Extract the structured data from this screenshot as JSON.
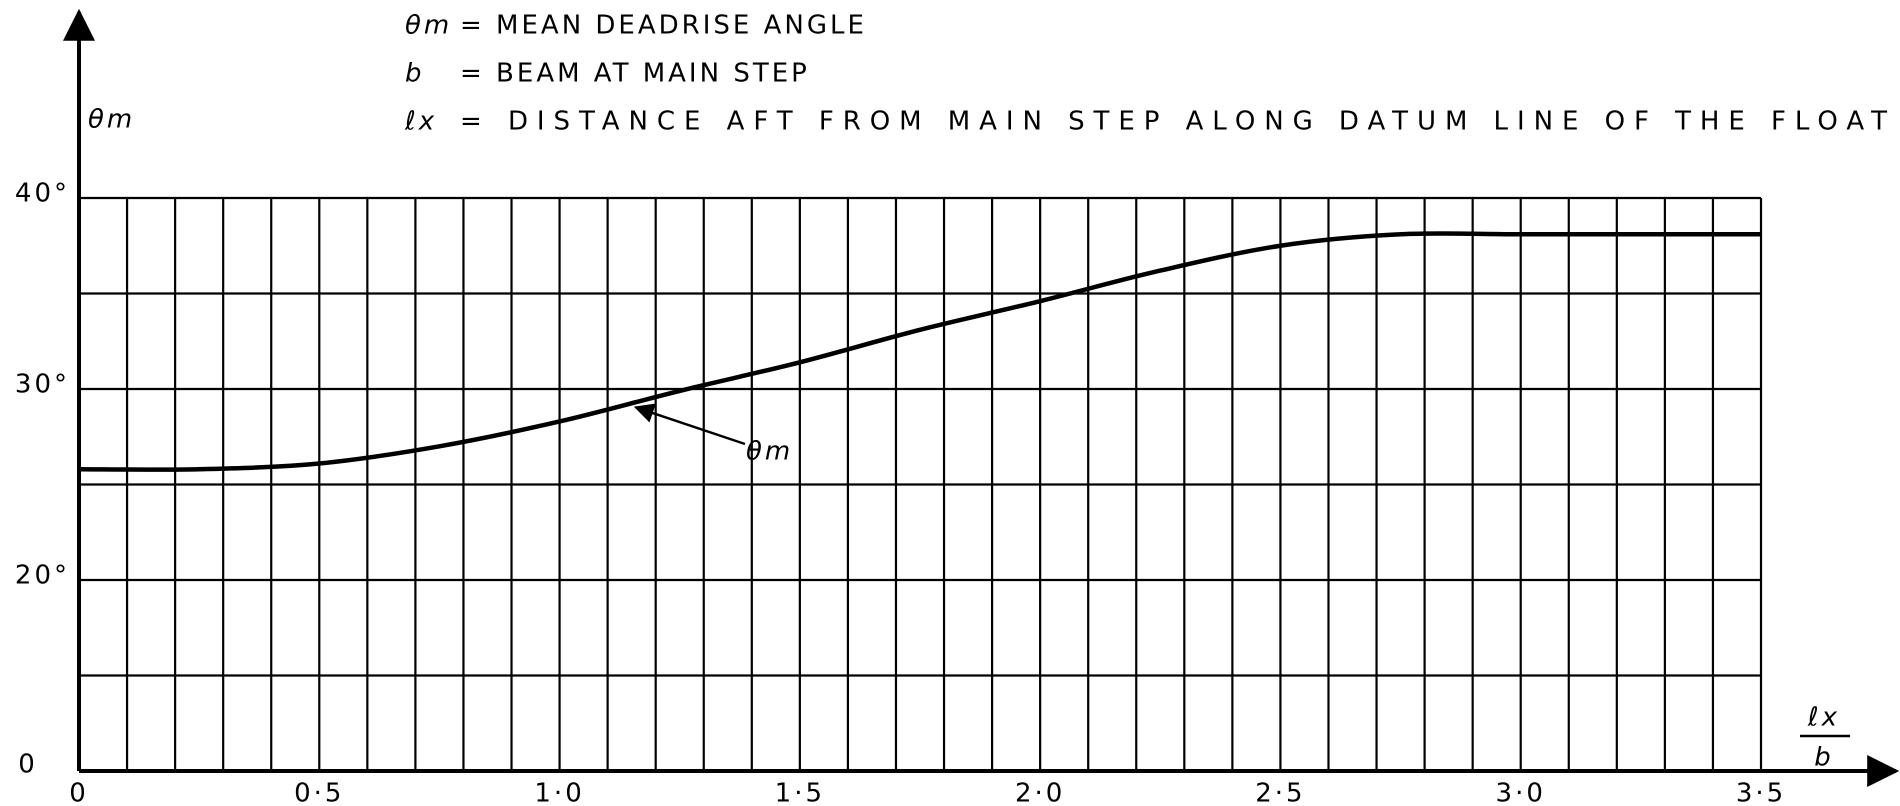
{
  "chart_data": {
    "type": "line",
    "definitions": [
      {
        "symbol": "θm",
        "text": "= MEAN DEADRISE ANGLE"
      },
      {
        "symbol": "b",
        "text": "= BEAM AT MAIN STEP"
      },
      {
        "symbol": "ℓx",
        "text": "= DISTANCE AFT FROM MAIN STEP ALONG DATUM LINE OF THE FLOAT"
      }
    ],
    "y_label": "θm",
    "x_label_top": "ℓx",
    "x_label_bottom": "b",
    "annotation": "θm",
    "annotation_x": 1.15,
    "annotation_y": 29.2,
    "y_origin_label": "0",
    "series": [
      {
        "name": "θm",
        "color": "#000000",
        "x": [
          0,
          0.25,
          0.5,
          0.75,
          1.0,
          1.25,
          1.5,
          1.75,
          2.0,
          2.25,
          2.5,
          2.75,
          3.0,
          3.25,
          3.5
        ],
        "values": [
          25.8,
          25.8,
          26.1,
          27.0,
          28.3,
          29.9,
          31.4,
          33.1,
          34.6,
          36.2,
          37.5,
          38.1,
          38.1,
          38.1,
          38.1
        ]
      }
    ],
    "xlim": [
      0,
      3.5
    ],
    "ylim": [
      10,
      40
    ],
    "xticks": [
      0,
      {
        "value": 0.5,
        "label": "0·5"
      },
      {
        "value": 1.0,
        "label": "1·0"
      },
      {
        "value": 1.5,
        "label": "1·5"
      },
      {
        "value": 2.0,
        "label": "2·0"
      },
      {
        "value": 2.5,
        "label": "2·5"
      },
      {
        "value": 3.0,
        "label": "3·0"
      },
      {
        "value": 3.5,
        "label": "3·5"
      }
    ],
    "yticks": [
      {
        "value": 20,
        "label": "20°"
      },
      {
        "value": 30,
        "label": "30°"
      },
      {
        "value": 40,
        "label": "40°"
      }
    ],
    "xgrid": [
      0,
      0.1,
      0.2,
      0.3,
      0.4,
      0.5,
      0.6,
      0.7,
      0.8,
      0.9,
      1.0,
      1.1,
      1.2,
      1.3,
      1.4,
      1.5,
      1.6,
      1.7,
      1.8,
      1.9,
      2.0,
      2.1,
      2.2,
      2.3,
      2.4,
      2.5,
      2.6,
      2.7,
      2.8,
      2.9,
      3.0,
      3.1,
      3.2,
      3.3,
      3.4,
      3.5
    ],
    "ygrid": [
      10,
      15,
      20,
      25,
      30,
      35,
      40
    ],
    "grid": true
  }
}
